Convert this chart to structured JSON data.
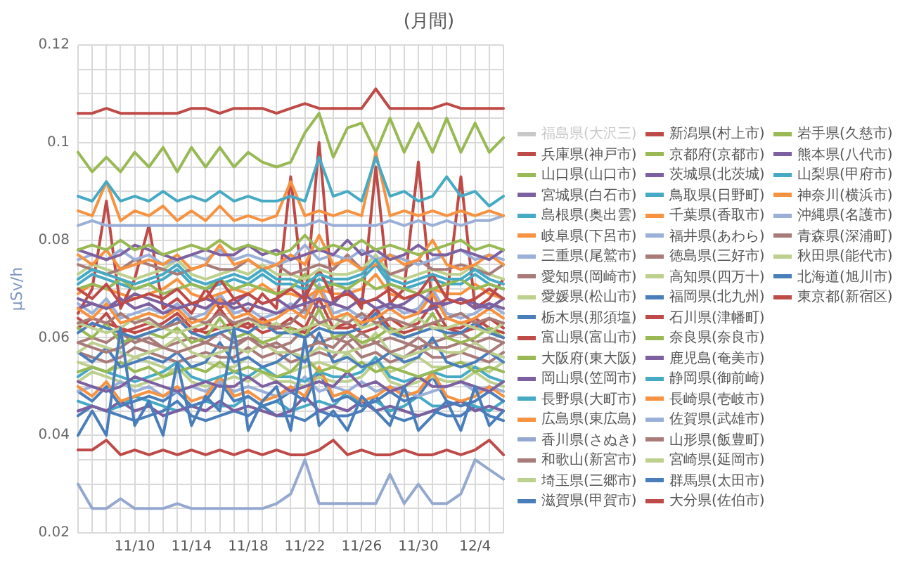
{
  "chart_data": {
    "type": "line",
    "title": "(月間)",
    "ylabel": "μSv/h",
    "legend": "right",
    "grid": true,
    "marker": "none",
    "line_style": "solid",
    "categories": [
      null,
      null,
      null,
      null,
      "11/10",
      null,
      null,
      null,
      "11/14",
      null,
      null,
      null,
      "11/18",
      null,
      null,
      null,
      "11/22",
      null,
      null,
      null,
      "11/26",
      null,
      null,
      null,
      "11/30",
      null,
      null,
      null,
      "12/4",
      null,
      null
    ],
    "ylim": [
      0.02,
      0.12
    ],
    "yticks": [
      0.02,
      {
        "value": 0.025,
        "label": null
      },
      {
        "value": 0.03,
        "label": null
      },
      {
        "value": 0.035,
        "label": null
      },
      0.04,
      {
        "value": 0.045,
        "label": null
      },
      {
        "value": 0.05,
        "label": null
      },
      {
        "value": 0.055,
        "label": null
      },
      0.06,
      {
        "value": 0.065,
        "label": null
      },
      {
        "value": 0.07,
        "label": null
      },
      {
        "value": 0.075,
        "label": null
      },
      0.08,
      {
        "value": 0.085,
        "label": null
      },
      {
        "value": 0.09,
        "label": null
      },
      {
        "value": 0.095,
        "label": null
      },
      0.1,
      {
        "value": 0.105,
        "label": null
      },
      {
        "value": 0.11,
        "label": null
      },
      {
        "value": 0.115,
        "label": null
      },
      0.12
    ],
    "series": [
      {
        "name": "福島県(大沢三)",
        "color": "#c8c8c8",
        "values": [
          null,
          null,
          null,
          null,
          null,
          null,
          null,
          null,
          null,
          null,
          null,
          null,
          null,
          null,
          null,
          null,
          null,
          null,
          null,
          null,
          null,
          null,
          null,
          null,
          null,
          null,
          null,
          null,
          null,
          null,
          null
        ]
      },
      {
        "name": "兵庫県(神戸市)",
        "color": "#be4b48",
        "values": [
          0.037,
          0.037,
          0.039,
          0.036,
          0.037,
          0.036,
          0.037,
          0.036,
          0.037,
          0.036,
          0.037,
          0.036,
          0.037,
          0.036,
          0.037,
          0.036,
          0.036,
          0.037,
          0.039,
          0.036,
          0.037,
          0.036,
          0.036,
          0.037,
          0.036,
          0.036,
          0.037,
          0.036,
          0.037,
          0.039,
          0.036
        ]
      },
      {
        "name": "山口県(山口市)",
        "color": "#98b954",
        "values": [
          0.078,
          0.079,
          0.078,
          0.08,
          0.078,
          0.079,
          0.077,
          0.078,
          0.079,
          0.078,
          0.08,
          0.078,
          0.079,
          0.078,
          0.077,
          0.078,
          0.081,
          0.078,
          0.079,
          0.078,
          0.08,
          0.078,
          0.079,
          0.078,
          0.077,
          0.078,
          0.079,
          0.08,
          0.078,
          0.079,
          0.078
        ]
      },
      {
        "name": "宮城県(白石市)",
        "color": "#7d60a0",
        "values": [
          0.078,
          0.077,
          0.076,
          0.077,
          0.079,
          0.078,
          0.077,
          0.076,
          0.077,
          0.078,
          0.077,
          0.077,
          0.079,
          0.077,
          0.078,
          0.076,
          0.077,
          0.078,
          0.077,
          0.08,
          0.077,
          0.078,
          0.076,
          0.077,
          0.079,
          0.077,
          0.077,
          0.078,
          0.077,
          0.076,
          0.078
        ]
      },
      {
        "name": "島根県(奥出雲)",
        "color": "#46aac5",
        "values": [
          0.072,
          0.074,
          0.073,
          0.072,
          0.071,
          0.072,
          0.073,
          0.075,
          0.072,
          0.071,
          0.072,
          0.073,
          0.072,
          0.074,
          0.072,
          0.072,
          0.071,
          0.073,
          0.072,
          0.072,
          0.073,
          0.076,
          0.072,
          0.071,
          0.072,
          0.073,
          0.072,
          0.072,
          0.074,
          0.072,
          0.071
        ]
      },
      {
        "name": "岐阜県(下呂市)",
        "color": "#f69240",
        "values": [
          0.077,
          0.075,
          0.078,
          0.074,
          0.075,
          0.076,
          0.075,
          0.077,
          0.074,
          0.075,
          0.079,
          0.075,
          0.076,
          0.074,
          0.075,
          0.077,
          0.075,
          0.081,
          0.075,
          0.076,
          0.074,
          0.075,
          0.077,
          0.075,
          0.076,
          0.08,
          0.075,
          0.074,
          0.075,
          0.077,
          0.075
        ]
      },
      {
        "name": "三重県(尾鷲市)",
        "color": "#9bb0d8",
        "values": [
          0.076,
          0.077,
          0.076,
          0.078,
          0.076,
          0.077,
          0.075,
          0.076,
          0.077,
          0.076,
          0.078,
          0.076,
          0.077,
          0.076,
          0.075,
          0.076,
          0.079,
          0.076,
          0.077,
          0.076,
          0.078,
          0.076,
          0.077,
          0.076,
          0.075,
          0.076,
          0.077,
          0.078,
          0.076,
          0.077,
          0.076
        ]
      },
      {
        "name": "愛知県(岡崎市)",
        "color": "#a87b79",
        "values": [
          0.075,
          0.074,
          0.073,
          0.074,
          0.076,
          0.075,
          0.074,
          0.073,
          0.074,
          0.075,
          0.074,
          0.074,
          0.076,
          0.074,
          0.075,
          0.073,
          0.074,
          0.075,
          0.074,
          0.077,
          0.074,
          0.075,
          0.073,
          0.074,
          0.076,
          0.074,
          0.074,
          0.075,
          0.074,
          0.073,
          0.075
        ]
      },
      {
        "name": "愛媛県(松山市)",
        "color": "#bdd08e",
        "values": [
          0.073,
          0.075,
          0.074,
          0.073,
          0.072,
          0.073,
          0.074,
          0.076,
          0.073,
          0.072,
          0.073,
          0.074,
          0.073,
          0.075,
          0.073,
          0.073,
          0.072,
          0.074,
          0.073,
          0.073,
          0.074,
          0.077,
          0.073,
          0.072,
          0.073,
          0.074,
          0.073,
          0.073,
          0.075,
          0.073,
          0.072
        ]
      },
      {
        "name": "栃木県(那須塩)",
        "color": "#4a7ebb",
        "values": [
          0.04,
          0.045,
          0.04,
          0.062,
          0.042,
          0.047,
          0.04,
          0.055,
          0.042,
          0.048,
          0.045,
          0.062,
          0.041,
          0.047,
          0.05,
          0.041,
          0.06,
          0.042,
          0.045,
          0.041,
          0.048,
          0.045,
          0.042,
          0.05,
          0.041,
          0.044,
          0.047,
          0.041,
          0.05,
          0.042,
          0.045
        ]
      },
      {
        "name": "富山県(富山市)",
        "color": "#be4b48",
        "values": [
          0.07,
          0.068,
          0.071,
          0.067,
          0.068,
          0.069,
          0.068,
          0.07,
          0.067,
          0.068,
          0.072,
          0.068,
          0.069,
          0.067,
          0.068,
          0.07,
          0.068,
          0.074,
          0.068,
          0.069,
          0.067,
          0.068,
          0.07,
          0.068,
          0.069,
          0.073,
          0.068,
          0.067,
          0.068,
          0.07,
          0.068
        ]
      },
      {
        "name": "大阪府(東大阪)",
        "color": "#98b954",
        "values": [
          0.07,
          0.071,
          0.07,
          0.072,
          0.07,
          0.071,
          0.069,
          0.07,
          0.071,
          0.07,
          0.072,
          0.07,
          0.071,
          0.07,
          0.069,
          0.07,
          0.073,
          0.07,
          0.071,
          0.07,
          0.072,
          0.07,
          0.071,
          0.07,
          0.069,
          0.07,
          0.071,
          0.072,
          0.07,
          0.071,
          0.07
        ]
      },
      {
        "name": "岡山県(笠岡市)",
        "color": "#7d60a0",
        "values": [
          0.068,
          0.067,
          0.066,
          0.067,
          0.069,
          0.068,
          0.067,
          0.066,
          0.067,
          0.068,
          0.067,
          0.067,
          0.069,
          0.067,
          0.068,
          0.066,
          0.067,
          0.068,
          0.067,
          0.07,
          0.067,
          0.068,
          0.066,
          0.067,
          0.069,
          0.067,
          0.067,
          0.068,
          0.067,
          0.066,
          0.068
        ]
      },
      {
        "name": "長野県(大町市)",
        "color": "#46aac5",
        "values": [
          0.071,
          0.073,
          0.072,
          0.071,
          0.07,
          0.071,
          0.072,
          0.074,
          0.071,
          0.07,
          0.071,
          0.072,
          0.071,
          0.073,
          0.071,
          0.071,
          0.07,
          0.072,
          0.071,
          0.071,
          0.072,
          0.075,
          0.071,
          0.07,
          0.071,
          0.072,
          0.071,
          0.071,
          0.073,
          0.071,
          0.07
        ]
      },
      {
        "name": "広島県(東広島)",
        "color": "#f69240",
        "values": [
          0.066,
          0.064,
          0.067,
          0.063,
          0.064,
          0.065,
          0.064,
          0.066,
          0.063,
          0.064,
          0.068,
          0.064,
          0.065,
          0.063,
          0.064,
          0.066,
          0.064,
          0.07,
          0.064,
          0.065,
          0.063,
          0.064,
          0.066,
          0.064,
          0.065,
          0.069,
          0.064,
          0.063,
          0.064,
          0.066,
          0.064
        ]
      },
      {
        "name": "香川県(さぬき)",
        "color": "#94a8d0",
        "values": [
          0.03,
          0.025,
          0.025,
          0.027,
          0.025,
          0.025,
          0.025,
          0.026,
          0.025,
          0.025,
          0.025,
          0.025,
          0.025,
          0.025,
          0.026,
          0.028,
          0.035,
          0.026,
          0.026,
          0.026,
          0.026,
          0.026,
          0.032,
          0.026,
          0.03,
          0.026,
          0.026,
          0.028,
          0.035,
          0.033,
          0.031
        ]
      },
      {
        "name": "和歌山(新宮市)",
        "color": "#a87b79",
        "values": [
          0.063,
          0.064,
          0.063,
          0.065,
          0.063,
          0.064,
          0.062,
          0.063,
          0.064,
          0.063,
          0.065,
          0.063,
          0.064,
          0.063,
          0.062,
          0.063,
          0.066,
          0.063,
          0.064,
          0.063,
          0.065,
          0.063,
          0.064,
          0.063,
          0.062,
          0.063,
          0.064,
          0.065,
          0.063,
          0.064,
          0.063
        ]
      },
      {
        "name": "埼玉県(三郷市)",
        "color": "#bdd08e",
        "values": [
          0.063,
          0.062,
          0.061,
          0.062,
          0.064,
          0.063,
          0.062,
          0.061,
          0.062,
          0.063,
          0.062,
          0.062,
          0.064,
          0.062,
          0.063,
          0.061,
          0.062,
          0.063,
          0.062,
          0.065,
          0.062,
          0.063,
          0.061,
          0.062,
          0.064,
          0.062,
          0.062,
          0.063,
          0.062,
          0.061,
          0.063
        ]
      },
      {
        "name": "滋賀県(甲賀市)",
        "color": "#4a7ebb",
        "values": [
          0.061,
          0.063,
          0.062,
          0.061,
          0.06,
          0.061,
          0.062,
          0.064,
          0.061,
          0.06,
          0.061,
          0.062,
          0.061,
          0.063,
          0.061,
          0.061,
          0.06,
          0.062,
          0.061,
          0.061,
          0.062,
          0.065,
          0.061,
          0.06,
          0.061,
          0.062,
          0.061,
          0.061,
          0.063,
          0.061,
          0.06
        ]
      },
      {
        "name": "新潟県(村上市)",
        "color": "#be4b48",
        "values": [
          0.106,
          0.106,
          0.107,
          0.106,
          0.106,
          0.106,
          0.106,
          0.106,
          0.107,
          0.107,
          0.106,
          0.107,
          0.107,
          0.107,
          0.106,
          0.107,
          0.108,
          0.107,
          0.107,
          0.107,
          0.107,
          0.111,
          0.107,
          0.107,
          0.107,
          0.107,
          0.108,
          0.107,
          0.107,
          0.107,
          0.107
        ]
      },
      {
        "name": "京都府(京都市)",
        "color": "#98b954",
        "values": [
          0.062,
          0.06,
          0.063,
          0.059,
          0.06,
          0.061,
          0.06,
          0.062,
          0.059,
          0.06,
          0.064,
          0.06,
          0.061,
          0.059,
          0.06,
          0.062,
          0.06,
          0.066,
          0.06,
          0.061,
          0.059,
          0.06,
          0.062,
          0.06,
          0.061,
          0.065,
          0.06,
          0.059,
          0.06,
          0.062,
          0.06
        ]
      },
      {
        "name": "茨城県(北茨城)",
        "color": "#7d60a0",
        "values": [
          0.066,
          0.067,
          0.066,
          0.068,
          0.066,
          0.067,
          0.065,
          0.066,
          0.067,
          0.066,
          0.068,
          0.066,
          0.067,
          0.066,
          0.065,
          0.066,
          0.069,
          0.066,
          0.067,
          0.066,
          0.068,
          0.066,
          0.067,
          0.066,
          0.065,
          0.066,
          0.067,
          0.068,
          0.066,
          0.067,
          0.066
        ]
      },
      {
        "name": "鳥取県(日野町)",
        "color": "#46aac5",
        "values": [
          0.089,
          0.088,
          0.092,
          0.088,
          0.089,
          0.088,
          0.09,
          0.088,
          0.089,
          0.088,
          0.09,
          0.088,
          0.089,
          0.088,
          0.088,
          0.089,
          0.088,
          0.097,
          0.089,
          0.09,
          0.088,
          0.097,
          0.089,
          0.09,
          0.088,
          0.089,
          0.093,
          0.089,
          0.09,
          0.087,
          0.089
        ]
      },
      {
        "name": "千葉県(香取市)",
        "color": "#f69240",
        "values": [
          0.086,
          0.085,
          0.092,
          0.084,
          0.086,
          0.085,
          0.087,
          0.084,
          0.086,
          0.084,
          0.087,
          0.084,
          0.085,
          0.084,
          0.085,
          0.092,
          0.085,
          0.086,
          0.085,
          0.086,
          0.085,
          0.098,
          0.085,
          0.086,
          0.085,
          0.086,
          0.085,
          0.086,
          0.085,
          0.086,
          0.085
        ]
      },
      {
        "name": "福井県(あわら)",
        "color": "#9bb0d8",
        "values": [
          0.083,
          0.084,
          0.083,
          0.083,
          0.083,
          0.083,
          0.083,
          0.083,
          0.083,
          0.083,
          0.083,
          0.083,
          0.083,
          0.083,
          0.083,
          0.083,
          0.083,
          0.084,
          0.083,
          0.083,
          0.083,
          0.083,
          0.084,
          0.083,
          0.084,
          0.083,
          0.084,
          0.083,
          0.084,
          0.084,
          0.085
        ]
      },
      {
        "name": "徳島県(三好市)",
        "color": "#a87b79",
        "values": [
          0.059,
          0.058,
          0.057,
          0.058,
          0.06,
          0.059,
          0.058,
          0.057,
          0.058,
          0.059,
          0.058,
          0.058,
          0.06,
          0.058,
          0.059,
          0.057,
          0.058,
          0.059,
          0.058,
          0.061,
          0.058,
          0.059,
          0.057,
          0.058,
          0.06,
          0.058,
          0.058,
          0.059,
          0.058,
          0.057,
          0.059
        ]
      },
      {
        "name": "高知県(四万十)",
        "color": "#bdd08e",
        "values": [
          0.057,
          0.059,
          0.058,
          0.057,
          0.056,
          0.057,
          0.058,
          0.06,
          0.057,
          0.056,
          0.057,
          0.058,
          0.057,
          0.059,
          0.057,
          0.057,
          0.056,
          0.058,
          0.057,
          0.057,
          0.058,
          0.061,
          0.057,
          0.056,
          0.057,
          0.058,
          0.057,
          0.057,
          0.059,
          0.057,
          0.056
        ]
      },
      {
        "name": "福岡県(北九州)",
        "color": "#4a7ebb",
        "values": [
          0.057,
          0.055,
          0.058,
          0.054,
          0.055,
          0.056,
          0.055,
          0.057,
          0.054,
          0.055,
          0.059,
          0.055,
          0.056,
          0.054,
          0.055,
          0.057,
          0.055,
          0.061,
          0.055,
          0.056,
          0.054,
          0.055,
          0.057,
          0.055,
          0.056,
          0.06,
          0.055,
          0.054,
          0.055,
          0.057,
          0.055
        ]
      },
      {
        "name": "石川県(津幡町)",
        "color": "#be4b48",
        "values": [
          0.065,
          0.07,
          0.088,
          0.066,
          0.072,
          0.083,
          0.066,
          0.068,
          0.065,
          0.07,
          0.066,
          0.068,
          0.065,
          0.069,
          0.066,
          0.093,
          0.066,
          0.1,
          0.067,
          0.07,
          0.066,
          0.095,
          0.067,
          0.07,
          0.096,
          0.066,
          0.068,
          0.093,
          0.066,
          0.068,
          0.072
        ]
      },
      {
        "name": "奈良県(奈良市)",
        "color": "#98b954",
        "values": [
          0.053,
          0.054,
          0.053,
          0.055,
          0.053,
          0.054,
          0.052,
          0.053,
          0.054,
          0.053,
          0.055,
          0.053,
          0.054,
          0.053,
          0.052,
          0.053,
          0.056,
          0.053,
          0.054,
          0.053,
          0.055,
          0.053,
          0.054,
          0.053,
          0.052,
          0.053,
          0.054,
          0.055,
          0.053,
          0.054,
          0.053
        ]
      },
      {
        "name": "鹿児島(奄美市)",
        "color": "#7d60a0",
        "values": [
          0.051,
          0.05,
          0.049,
          0.05,
          0.052,
          0.051,
          0.05,
          0.049,
          0.05,
          0.051,
          0.05,
          0.05,
          0.052,
          0.05,
          0.051,
          0.049,
          0.05,
          0.051,
          0.05,
          0.053,
          0.05,
          0.051,
          0.049,
          0.05,
          0.052,
          0.05,
          0.05,
          0.051,
          0.05,
          0.049,
          0.051
        ]
      },
      {
        "name": "静岡県(御前崎)",
        "color": "#46aac5",
        "values": [
          0.052,
          0.054,
          0.053,
          0.052,
          0.051,
          0.052,
          0.053,
          0.055,
          0.052,
          0.051,
          0.052,
          0.053,
          0.052,
          0.054,
          0.052,
          0.052,
          0.051,
          0.053,
          0.052,
          0.052,
          0.053,
          0.056,
          0.052,
          0.051,
          0.052,
          0.053,
          0.052,
          0.052,
          0.054,
          0.052,
          0.051
        ]
      },
      {
        "name": "長崎県(壱岐市)",
        "color": "#f69240",
        "values": [
          0.05,
          0.048,
          0.051,
          0.047,
          0.048,
          0.049,
          0.048,
          0.05,
          0.047,
          0.048,
          0.052,
          0.048,
          0.049,
          0.047,
          0.048,
          0.05,
          0.048,
          0.054,
          0.048,
          0.049,
          0.047,
          0.048,
          0.05,
          0.048,
          0.049,
          0.053,
          0.048,
          0.047,
          0.048,
          0.05,
          0.048
        ]
      },
      {
        "name": "佐賀県(武雄市)",
        "color": "#9bb0d8",
        "values": [
          0.049,
          0.05,
          0.049,
          0.051,
          0.049,
          0.05,
          0.048,
          0.049,
          0.05,
          0.049,
          0.051,
          0.049,
          0.05,
          0.049,
          0.048,
          0.049,
          0.052,
          0.049,
          0.05,
          0.049,
          0.051,
          0.049,
          0.05,
          0.049,
          0.048,
          0.049,
          0.05,
          0.051,
          0.049,
          0.05,
          0.049
        ]
      },
      {
        "name": "山形県(飯豊町)",
        "color": "#a87b79",
        "values": [
          0.057,
          0.056,
          0.055,
          0.056,
          0.058,
          0.057,
          0.056,
          0.055,
          0.056,
          0.057,
          0.056,
          0.056,
          0.058,
          0.056,
          0.057,
          0.055,
          0.056,
          0.057,
          0.056,
          0.059,
          0.056,
          0.057,
          0.055,
          0.056,
          0.058,
          0.056,
          0.056,
          0.057,
          0.056,
          0.055,
          0.057
        ]
      },
      {
        "name": "宮崎県(延岡市)",
        "color": "#bdd08e",
        "values": [
          0.051,
          0.053,
          0.052,
          0.051,
          0.05,
          0.051,
          0.052,
          0.054,
          0.051,
          0.05,
          0.051,
          0.052,
          0.051,
          0.053,
          0.051,
          0.051,
          0.05,
          0.052,
          0.051,
          0.051,
          0.052,
          0.055,
          0.051,
          0.05,
          0.051,
          0.052,
          0.051,
          0.051,
          0.053,
          0.051,
          0.05
        ]
      },
      {
        "name": "群馬県(太田市)",
        "color": "#4a7ebb",
        "values": [
          0.049,
          0.047,
          0.05,
          0.046,
          0.047,
          0.048,
          0.047,
          0.049,
          0.046,
          0.047,
          0.051,
          0.047,
          0.048,
          0.046,
          0.047,
          0.049,
          0.047,
          0.053,
          0.047,
          0.048,
          0.046,
          0.047,
          0.049,
          0.047,
          0.048,
          0.052,
          0.047,
          0.046,
          0.047,
          0.049,
          0.047
        ]
      },
      {
        "name": "大分県(佐伯市)",
        "color": "#be4b48",
        "values": [
          0.062,
          0.064,
          0.063,
          0.062,
          0.061,
          0.062,
          0.063,
          0.065,
          0.062,
          0.061,
          0.062,
          0.063,
          0.062,
          0.064,
          0.062,
          0.062,
          0.061,
          0.063,
          0.062,
          0.062,
          0.063,
          0.066,
          0.062,
          0.061,
          0.062,
          0.063,
          0.062,
          0.062,
          0.064,
          0.062,
          0.061
        ]
      },
      {
        "name": "岩手県(久慈市)",
        "color": "#98b954",
        "values": [
          0.098,
          0.094,
          0.097,
          0.094,
          0.098,
          0.095,
          0.099,
          0.094,
          0.099,
          0.095,
          0.099,
          0.095,
          0.098,
          0.096,
          0.095,
          0.096,
          0.102,
          0.106,
          0.097,
          0.103,
          0.104,
          0.098,
          0.105,
          0.098,
          0.104,
          0.098,
          0.105,
          0.098,
          0.104,
          0.098,
          0.101
        ]
      },
      {
        "name": "熊本県(八代市)",
        "color": "#7d60a0",
        "values": [
          0.045,
          0.046,
          0.045,
          0.047,
          0.045,
          0.046,
          0.044,
          0.045,
          0.046,
          0.045,
          0.047,
          0.045,
          0.046,
          0.045,
          0.044,
          0.045,
          0.048,
          0.045,
          0.046,
          0.045,
          0.047,
          0.045,
          0.046,
          0.045,
          0.044,
          0.045,
          0.046,
          0.047,
          0.045,
          0.046,
          0.045
        ]
      },
      {
        "name": "山梨県(甲府市)",
        "color": "#46aac5",
        "values": [
          0.047,
          0.046,
          0.045,
          0.046,
          0.048,
          0.047,
          0.046,
          0.045,
          0.046,
          0.047,
          0.046,
          0.046,
          0.048,
          0.046,
          0.047,
          0.045,
          0.046,
          0.047,
          0.046,
          0.049,
          0.046,
          0.047,
          0.045,
          0.046,
          0.048,
          0.046,
          0.046,
          0.047,
          0.046,
          0.045,
          0.047
        ]
      },
      {
        "name": "神奈川(横浜市)",
        "color": "#f69240",
        "values": [
          0.069,
          0.071,
          0.07,
          0.069,
          0.068,
          0.069,
          0.07,
          0.072,
          0.069,
          0.068,
          0.069,
          0.07,
          0.069,
          0.071,
          0.069,
          0.069,
          0.068,
          0.07,
          0.069,
          0.069,
          0.07,
          0.073,
          0.069,
          0.068,
          0.069,
          0.07,
          0.069,
          0.069,
          0.071,
          0.069,
          0.068
        ]
      },
      {
        "name": "沖縄県(名護市)",
        "color": "#9bb0d8",
        "values": [
          0.067,
          0.065,
          0.068,
          0.064,
          0.065,
          0.066,
          0.065,
          0.067,
          0.064,
          0.065,
          0.069,
          0.065,
          0.066,
          0.064,
          0.065,
          0.067,
          0.065,
          0.071,
          0.065,
          0.066,
          0.064,
          0.065,
          0.067,
          0.065,
          0.066,
          0.07,
          0.065,
          0.064,
          0.065,
          0.067,
          0.065
        ]
      },
      {
        "name": "青森県(深浦町)",
        "color": "#a87b79",
        "values": [
          0.059,
          0.06,
          0.059,
          0.061,
          0.059,
          0.06,
          0.058,
          0.059,
          0.06,
          0.059,
          0.061,
          0.059,
          0.06,
          0.059,
          0.058,
          0.059,
          0.062,
          0.059,
          0.06,
          0.059,
          0.061,
          0.059,
          0.06,
          0.059,
          0.058,
          0.059,
          0.06,
          0.061,
          0.059,
          0.06,
          0.059
        ]
      },
      {
        "name": "秋田県(能代市)",
        "color": "#bdd08e",
        "values": [
          0.055,
          0.054,
          0.053,
          0.054,
          0.056,
          0.055,
          0.054,
          0.053,
          0.054,
          0.055,
          0.054,
          0.054,
          0.056,
          0.054,
          0.055,
          0.053,
          0.054,
          0.055,
          0.054,
          0.057,
          0.054,
          0.055,
          0.053,
          0.054,
          0.056,
          0.054,
          0.054,
          0.055,
          0.054,
          0.053,
          0.055
        ]
      },
      {
        "name": "北海道(旭川市)",
        "color": "#4a7ebb",
        "values": [
          0.044,
          0.046,
          0.045,
          0.044,
          0.043,
          0.044,
          0.045,
          0.047,
          0.044,
          0.043,
          0.044,
          0.045,
          0.044,
          0.046,
          0.044,
          0.044,
          0.043,
          0.045,
          0.044,
          0.044,
          0.045,
          0.048,
          0.044,
          0.043,
          0.044,
          0.045,
          0.044,
          0.044,
          0.046,
          0.044,
          0.043
        ]
      },
      {
        "name": "東京都(新宿区)",
        "color": "#be4b48",
        "values": [
          0.064,
          0.062,
          0.065,
          0.061,
          0.062,
          0.063,
          0.062,
          0.064,
          0.061,
          0.062,
          0.066,
          0.062,
          0.063,
          0.061,
          0.062,
          0.064,
          0.062,
          0.068,
          0.062,
          0.063,
          0.061,
          0.062,
          0.064,
          0.062,
          0.063,
          0.067,
          0.062,
          0.061,
          0.062,
          0.064,
          0.062
        ]
      }
    ]
  }
}
